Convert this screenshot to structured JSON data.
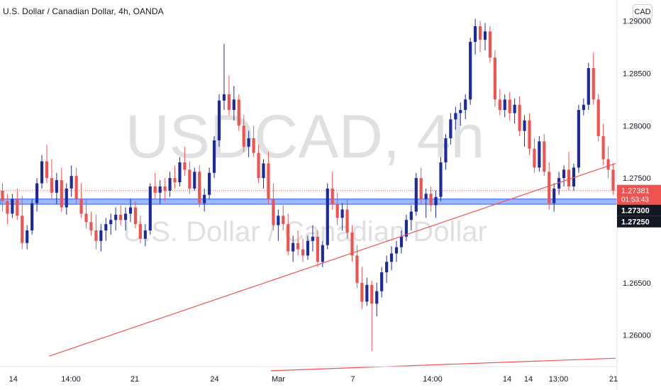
{
  "header": {
    "title": "U.S. Dollar / Canadian Dollar, 4h, OANDA"
  },
  "currency_button": "CAD",
  "watermark": {
    "symbol": "USDCAD, 4h",
    "name": "U.S. Dollar / Canadian Dollar"
  },
  "colors": {
    "up": "#1c2a9c",
    "down": "#ef5350",
    "zone": "#2962ff",
    "trend": "#ef5350",
    "axis_text": "#131722"
  },
  "chart_data": {
    "type": "candlestick",
    "title": "U.S. Dollar / Canadian Dollar, 4h, OANDA",
    "ylim": [
      1.257,
      1.292
    ],
    "y_ticks": [
      "1.29000",
      "1.28500",
      "1.28000",
      "1.27500",
      "1.26500",
      "1.26000"
    ],
    "x_ticks": [
      "14",
      "14:00",
      "21",
      "24",
      "Mar",
      "7",
      "14:00",
      "14",
      "14",
      "13:00",
      "21"
    ],
    "price_labels": [
      {
        "value": "1.27381",
        "sub": "01:53:43",
        "kind": "last"
      },
      {
        "value": "1.27300",
        "kind": "level"
      },
      {
        "value": "1.27250",
        "kind": "level"
      }
    ],
    "last_price": 1.27381,
    "support_zone": [
      1.2725,
      1.273
    ],
    "trendlines": [
      {
        "from": [
          2,
          1.258
        ],
        "to": [
          25,
          1.2764
        ]
      },
      {
        "from": [
          11,
          1.2566
        ],
        "to": [
          25,
          1.2578
        ]
      }
    ],
    "candles": [
      [
        1.2738,
        1.2745,
        1.2718,
        1.2728
      ],
      [
        1.2728,
        1.2735,
        1.2706,
        1.2716
      ],
      [
        1.2716,
        1.2735,
        1.2712,
        1.273
      ],
      [
        1.273,
        1.274,
        1.271,
        1.2714
      ],
      [
        1.2714,
        1.2733,
        1.2682,
        1.2688
      ],
      [
        1.2688,
        1.2705,
        1.2682,
        1.27
      ],
      [
        1.27,
        1.273,
        1.2696,
        1.2726
      ],
      [
        1.2726,
        1.275,
        1.2718,
        1.2745
      ],
      [
        1.2745,
        1.2772,
        1.274,
        1.2766
      ],
      [
        1.2766,
        1.2782,
        1.2745,
        1.275
      ],
      [
        1.275,
        1.2768,
        1.273,
        1.2736
      ],
      [
        1.2736,
        1.2755,
        1.2725,
        1.2748
      ],
      [
        1.2748,
        1.276,
        1.2718,
        1.2722
      ],
      [
        1.2722,
        1.2745,
        1.2715,
        1.274
      ],
      [
        1.274,
        1.2762,
        1.2732,
        1.2752
      ],
      [
        1.2752,
        1.276,
        1.2725,
        1.273
      ],
      [
        1.273,
        1.2745,
        1.2712,
        1.2716
      ],
      [
        1.2716,
        1.273,
        1.2702,
        1.2708
      ],
      [
        1.2708,
        1.2718,
        1.2695,
        1.27
      ],
      [
        1.27,
        1.2715,
        1.2682,
        1.269
      ],
      [
        1.269,
        1.2706,
        1.268,
        1.27
      ],
      [
        1.27,
        1.2712,
        1.269,
        1.2706
      ],
      [
        1.2706,
        1.2716,
        1.2696,
        1.271
      ],
      [
        1.271,
        1.2722,
        1.27,
        1.2715
      ],
      [
        1.2715,
        1.2724,
        1.2705,
        1.271
      ],
      [
        1.271,
        1.2722,
        1.27,
        1.2716
      ],
      [
        1.2716,
        1.273,
        1.2708,
        1.2722
      ],
      [
        1.2722,
        1.2728,
        1.2702,
        1.2706
      ],
      [
        1.2706,
        1.2714,
        1.2688,
        1.2692
      ],
      [
        1.2692,
        1.2706,
        1.2685,
        1.27
      ],
      [
        1.27,
        1.2745,
        1.2696,
        1.2742
      ],
      [
        1.2742,
        1.2755,
        1.273,
        1.2736
      ],
      [
        1.2736,
        1.2748,
        1.2725,
        1.2742
      ],
      [
        1.2742,
        1.275,
        1.2728,
        1.2738
      ],
      [
        1.2738,
        1.2756,
        1.2732,
        1.275
      ],
      [
        1.275,
        1.2762,
        1.274,
        1.2746
      ],
      [
        1.2746,
        1.277,
        1.2742,
        1.2765
      ],
      [
        1.2765,
        1.278,
        1.2752,
        1.2758
      ],
      [
        1.2758,
        1.2766,
        1.2735,
        1.274
      ],
      [
        1.274,
        1.276,
        1.2738,
        1.2756
      ],
      [
        1.2756,
        1.2762,
        1.2722,
        1.2726
      ],
      [
        1.2726,
        1.274,
        1.2718,
        1.2734
      ],
      [
        1.2734,
        1.276,
        1.273,
        1.2755
      ],
      [
        1.2755,
        1.279,
        1.275,
        1.2786
      ],
      [
        1.2786,
        1.283,
        1.278,
        1.2824
      ],
      [
        1.2824,
        1.2878,
        1.2815,
        1.283
      ],
      [
        1.283,
        1.2848,
        1.281,
        1.2815
      ],
      [
        1.2815,
        1.2838,
        1.2805,
        1.2825
      ],
      [
        1.2825,
        1.283,
        1.2795,
        1.28
      ],
      [
        1.28,
        1.281,
        1.2775,
        1.278
      ],
      [
        1.278,
        1.2795,
        1.277,
        1.2788
      ],
      [
        1.2788,
        1.28,
        1.277,
        1.2774
      ],
      [
        1.2774,
        1.2782,
        1.2745,
        1.275
      ],
      [
        1.275,
        1.2768,
        1.274,
        1.2764
      ],
      [
        1.2764,
        1.2775,
        1.2725,
        1.273
      ],
      [
        1.273,
        1.2745,
        1.27,
        1.2705
      ],
      [
        1.2705,
        1.272,
        1.269,
        1.2714
      ],
      [
        1.2714,
        1.2724,
        1.27,
        1.2706
      ],
      [
        1.2706,
        1.2716,
        1.2676,
        1.268
      ],
      [
        1.268,
        1.2695,
        1.267,
        1.2688
      ],
      [
        1.2688,
        1.27,
        1.2676,
        1.2682
      ],
      [
        1.2682,
        1.2692,
        1.267,
        1.2676
      ],
      [
        1.2676,
        1.2695,
        1.2672,
        1.269
      ],
      [
        1.269,
        1.2705,
        1.268,
        1.2694
      ],
      [
        1.2694,
        1.27,
        1.2665,
        1.267
      ],
      [
        1.267,
        1.269,
        1.2665,
        1.2686
      ],
      [
        1.2686,
        1.2745,
        1.2682,
        1.274
      ],
      [
        1.274,
        1.2756,
        1.272,
        1.2725
      ],
      [
        1.2725,
        1.2736,
        1.2705,
        1.2712
      ],
      [
        1.2712,
        1.2726,
        1.27,
        1.272
      ],
      [
        1.272,
        1.273,
        1.2692,
        1.2698
      ],
      [
        1.2698,
        1.2705,
        1.267,
        1.2676
      ],
      [
        1.2676,
        1.2686,
        1.2645,
        1.265
      ],
      [
        1.265,
        1.2665,
        1.2625,
        1.2632
      ],
      [
        1.2632,
        1.2655,
        1.2628,
        1.2648
      ],
      [
        1.2648,
        1.2652,
        1.2585,
        1.263
      ],
      [
        1.263,
        1.265,
        1.2618,
        1.2642
      ],
      [
        1.2642,
        1.2665,
        1.2636,
        1.266
      ],
      [
        1.266,
        1.2676,
        1.265,
        1.267
      ],
      [
        1.267,
        1.2685,
        1.2662,
        1.2678
      ],
      [
        1.2678,
        1.269,
        1.267,
        1.2684
      ],
      [
        1.2684,
        1.27,
        1.2678,
        1.2694
      ],
      [
        1.2694,
        1.2715,
        1.269,
        1.271
      ],
      [
        1.271,
        1.2724,
        1.27,
        1.2718
      ],
      [
        1.2718,
        1.2755,
        1.2714,
        1.275
      ],
      [
        1.275,
        1.276,
        1.2725,
        1.273
      ],
      [
        1.273,
        1.274,
        1.2712,
        1.2735
      ],
      [
        1.2735,
        1.2742,
        1.2718,
        1.2724
      ],
      [
        1.2724,
        1.2738,
        1.2712,
        1.2732
      ],
      [
        1.2732,
        1.277,
        1.2728,
        1.2765
      ],
      [
        1.2765,
        1.2792,
        1.2758,
        1.2788
      ],
      [
        1.2788,
        1.2812,
        1.2782,
        1.2806
      ],
      [
        1.2806,
        1.2818,
        1.2796,
        1.2812
      ],
      [
        1.2812,
        1.2822,
        1.28,
        1.2815
      ],
      [
        1.2815,
        1.283,
        1.2806,
        1.2825
      ],
      [
        1.2825,
        1.2884,
        1.282,
        1.288
      ],
      [
        1.288,
        1.2902,
        1.2868,
        1.2895
      ],
      [
        1.2895,
        1.29,
        1.287,
        1.2882
      ],
      [
        1.2882,
        1.2898,
        1.2872,
        1.289
      ],
      [
        1.289,
        1.2895,
        1.286,
        1.2865
      ],
      [
        1.2865,
        1.2872,
        1.2818,
        1.2825
      ],
      [
        1.2825,
        1.2835,
        1.281,
        1.2815
      ],
      [
        1.2815,
        1.283,
        1.2808,
        1.2825
      ],
      [
        1.2825,
        1.2832,
        1.2805,
        1.2812
      ],
      [
        1.2812,
        1.2826,
        1.2802,
        1.282
      ],
      [
        1.282,
        1.2828,
        1.279,
        1.2795
      ],
      [
        1.2795,
        1.281,
        1.278,
        1.2805
      ],
      [
        1.2805,
        1.2812,
        1.2772,
        1.2778
      ],
      [
        1.2778,
        1.2788,
        1.2755,
        1.276
      ],
      [
        1.276,
        1.279,
        1.2756,
        1.2785
      ],
      [
        1.2785,
        1.2792,
        1.2752,
        1.2756
      ],
      [
        1.2756,
        1.2765,
        1.272,
        1.2726
      ],
      [
        1.2726,
        1.2745,
        1.2718,
        1.274
      ],
      [
        1.274,
        1.2756,
        1.2734,
        1.275
      ],
      [
        1.275,
        1.2762,
        1.2742,
        1.2758
      ],
      [
        1.2758,
        1.2775,
        1.2738,
        1.2742
      ],
      [
        1.2742,
        1.2764,
        1.2738,
        1.276
      ],
      [
        1.276,
        1.282,
        1.2755,
        1.2815
      ],
      [
        1.2815,
        1.2826,
        1.281,
        1.282
      ],
      [
        1.282,
        1.286,
        1.2815,
        1.2855
      ],
      [
        1.2855,
        1.287,
        1.282,
        1.2825
      ],
      [
        1.2825,
        1.283,
        1.2785,
        1.279
      ],
      [
        1.279,
        1.2802,
        1.2762,
        1.2768
      ],
      [
        1.2768,
        1.278,
        1.275,
        1.2758
      ],
      [
        1.2758,
        1.2764,
        1.2734,
        1.2738
      ]
    ]
  }
}
